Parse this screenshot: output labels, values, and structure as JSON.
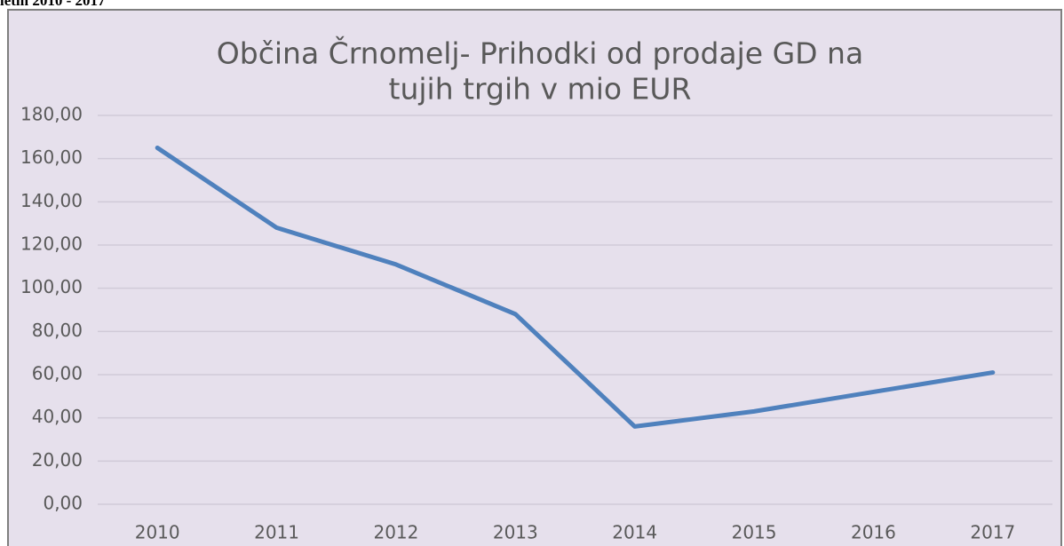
{
  "caption": "letih 2010 - 2017",
  "chart_data": {
    "type": "line",
    "title": [
      "Občina Črnomelj- Prihodki od prodaje GD na",
      "tujih trgih v mio EUR"
    ],
    "categories": [
      "2010",
      "2011",
      "2012",
      "2013",
      "2014",
      "2015",
      "2016",
      "2017"
    ],
    "series": [
      {
        "name": "Prihodki",
        "color": "#4f81bd",
        "values": [
          165,
          128,
          111,
          88,
          36,
          43,
          52,
          61
        ]
      }
    ],
    "ylim": [
      0,
      180
    ],
    "yticks": [
      {
        "value": 0,
        "label": "0,00"
      },
      {
        "value": 20,
        "label": "20,00"
      },
      {
        "value": 40,
        "label": "40,00"
      },
      {
        "value": 60,
        "label": "60,00"
      },
      {
        "value": 80,
        "label": "80,00"
      },
      {
        "value": 100,
        "label": "100,00"
      },
      {
        "value": 120,
        "label": "120,00"
      },
      {
        "value": 140,
        "label": "140,00"
      },
      {
        "value": 160,
        "label": "160,00"
      },
      {
        "value": 180,
        "label": "180,00"
      }
    ],
    "grid": true
  }
}
